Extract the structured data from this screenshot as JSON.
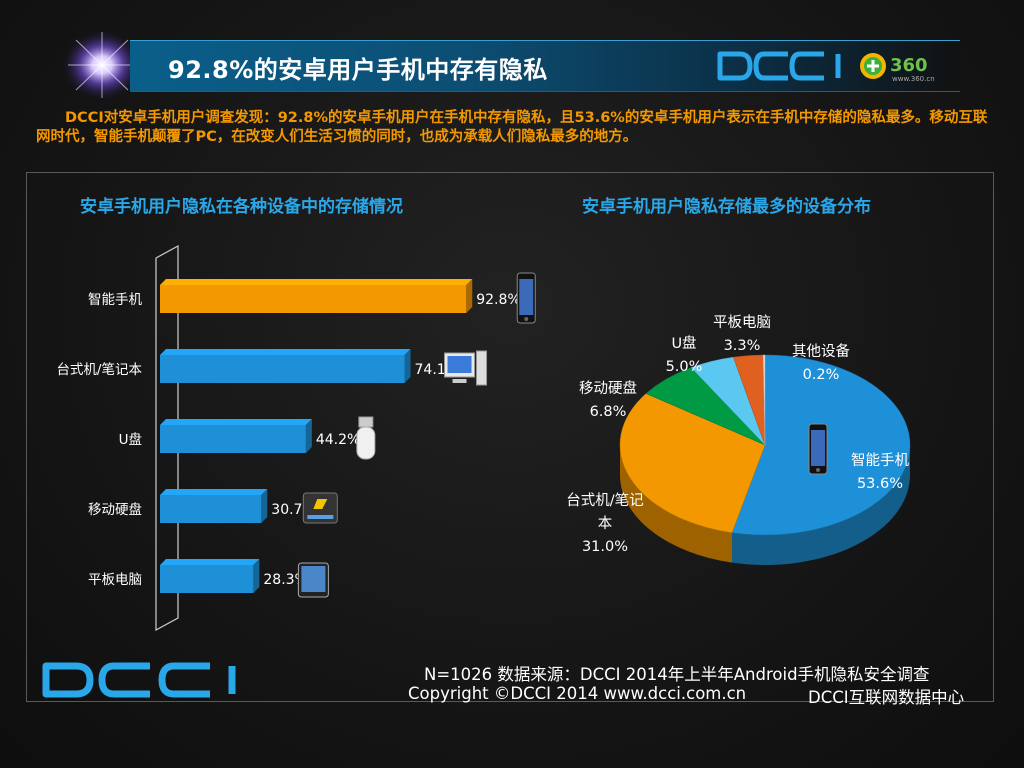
{
  "header": {
    "title": "92.8%的安卓用户手机中存有隐私",
    "logo_text": "DCCI",
    "logo_360": "360",
    "logo_360_sub": "www.360.cn"
  },
  "intro": "DCCI对安卓手机用户调查发现：92.8%的安卓手机用户在手机中存有隐私，且53.6%的安卓手机用户表示在手机中存储的隐私最多。移动互联网时代，智能手机颠覆了PC，在改变人们生活习惯的同时，也成为承载人们隐私最多的地方。",
  "colors": {
    "orange": "#f39800",
    "blue": "#1e90d8",
    "green": "#009944",
    "lightblue": "#5ac8f0",
    "rust": "#e06020",
    "title_blue": "#2aa7e8"
  },
  "chart_data": [
    {
      "type": "bar",
      "orientation": "horizontal",
      "title": "安卓手机用户隐私在各种设备中的存储情况",
      "categories": [
        "智能手机",
        "台式机/笔记本",
        "U盘",
        "移动硬盘",
        "平板电脑"
      ],
      "values": [
        92.8,
        74.1,
        44.2,
        30.7,
        28.3
      ],
      "value_labels": [
        "92.8%",
        "74.1%",
        "44.2%",
        "30.7%",
        "28.3%"
      ],
      "bar_colors": [
        "#f39800",
        "#1e90d8",
        "#1e90d8",
        "#1e90d8",
        "#1e90d8"
      ],
      "icons": [
        "phone-icon",
        "desktop-computer-icon",
        "usb-drive-icon",
        "hard-drive-icon",
        "tablet-icon"
      ],
      "xlim": [
        0,
        100
      ],
      "grid": false
    },
    {
      "type": "pie",
      "style": "3d",
      "title": "安卓手机用户隐私存储最多的设备分布",
      "slices": [
        {
          "label": "智能手机",
          "value": 53.6,
          "value_label": "53.6%",
          "color": "#1e90d8"
        },
        {
          "label": "台式机/笔记本",
          "value": 31.0,
          "value_label": "31.0%",
          "color": "#f39800"
        },
        {
          "label": "移动硬盘",
          "value": 6.8,
          "value_label": "6.8%",
          "color": "#009944"
        },
        {
          "label": "U盘",
          "value": 5.0,
          "value_label": "5.0%",
          "color": "#5ac8f0"
        },
        {
          "label": "平板电脑",
          "value": 3.3,
          "value_label": "3.3%",
          "color": "#e06020"
        },
        {
          "label": "其他设备",
          "value": 0.2,
          "value_label": "0.2%",
          "color": "#e0e0e0"
        }
      ]
    }
  ],
  "footer": {
    "logo_text": "DCCI",
    "source": "N=1026 数据来源：DCCI 2014年上半年Android手机隐私安全调查",
    "copyright": "Copyright ©DCCI 2014 www.dcci.com.cn",
    "center": "DCCI互联网数据中心"
  }
}
